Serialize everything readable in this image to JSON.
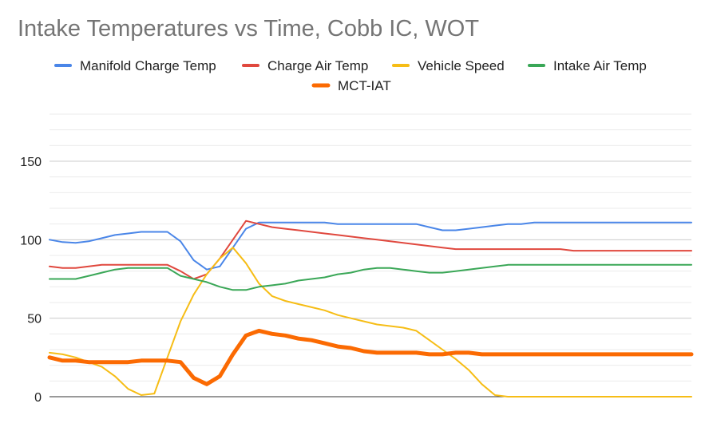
{
  "chart_data": {
    "type": "line",
    "title": "Intake Temperatures vs Time, Cobb IC, WOT",
    "xlabel": "",
    "ylabel": "",
    "ylim": [
      0,
      180
    ],
    "yticks": [
      0,
      50,
      100,
      150
    ],
    "grid": true,
    "legend_position": "top",
    "x": [
      1,
      2,
      3,
      4,
      5,
      6,
      7,
      8,
      9,
      10,
      11,
      12,
      13,
      14,
      15,
      16,
      17,
      18,
      19,
      20,
      21,
      22,
      23,
      24,
      25,
      26,
      27,
      28,
      29,
      30,
      31,
      32,
      33,
      34,
      35,
      36,
      37,
      38,
      39,
      40,
      41,
      42,
      43,
      44,
      45,
      46,
      47,
      48,
      49,
      50
    ],
    "series": [
      {
        "name": "Manifold Charge Temp",
        "color": "#4a86e8",
        "values": [
          100,
          98.5,
          98,
          99,
          101,
          103,
          104,
          105,
          105,
          105,
          99,
          87,
          81,
          83,
          95,
          107,
          111,
          111,
          111,
          111,
          111,
          111,
          110,
          110,
          110,
          110,
          110,
          110,
          110,
          108,
          106,
          106,
          107,
          108,
          109,
          110,
          110,
          111,
          111,
          111,
          111,
          111,
          111,
          111,
          111,
          111,
          111,
          111,
          111,
          111
        ]
      },
      {
        "name": "Charge Air Temp",
        "color": "#e0483e",
        "values": [
          83,
          82,
          82,
          83,
          84,
          84,
          84,
          84,
          84,
          84,
          80,
          75,
          78,
          88,
          100,
          112,
          110,
          108,
          107,
          106,
          105,
          104,
          103,
          102,
          101,
          100,
          99,
          98,
          97,
          96,
          95,
          94,
          94,
          94,
          94,
          94,
          94,
          94,
          94,
          94,
          93,
          93,
          93,
          93,
          93,
          93,
          93,
          93,
          93,
          93
        ]
      },
      {
        "name": "Vehicle Speed",
        "color": "#f6bd16",
        "values": [
          28,
          27,
          25,
          22,
          19,
          13,
          5,
          1,
          2,
          25,
          48,
          65,
          78,
          88,
          95,
          85,
          72,
          64,
          61,
          59,
          57,
          55,
          52,
          50,
          48,
          46,
          45,
          44,
          42,
          36,
          30,
          24,
          17,
          8,
          1,
          0,
          0,
          0,
          0,
          0,
          0,
          0,
          0,
          0,
          0,
          0,
          0,
          0,
          0,
          0
        ]
      },
      {
        "name": "Intake Air Temp",
        "color": "#3aa757",
        "values": [
          75,
          75,
          75,
          77,
          79,
          81,
          82,
          82,
          82,
          82,
          77,
          75,
          73,
          70,
          68,
          68,
          70,
          71,
          72,
          74,
          75,
          76,
          78,
          79,
          81,
          82,
          82,
          81,
          80,
          79,
          79,
          80,
          81,
          82,
          83,
          84,
          84,
          84,
          84,
          84,
          84,
          84,
          84,
          84,
          84,
          84,
          84,
          84,
          84,
          84
        ]
      },
      {
        "name": "MCT-IAT",
        "color": "#fb6a02",
        "values": [
          25,
          23,
          23,
          22,
          22,
          22,
          22,
          23,
          23,
          23,
          22,
          12,
          8,
          13,
          27,
          39,
          42,
          40,
          39,
          37,
          36,
          34,
          32,
          31,
          29,
          28,
          28,
          28,
          28,
          27,
          27,
          28,
          28,
          27,
          27,
          27,
          27,
          27,
          27,
          27,
          27,
          27,
          27,
          27,
          27,
          27,
          27,
          27,
          27,
          27
        ]
      }
    ]
  }
}
